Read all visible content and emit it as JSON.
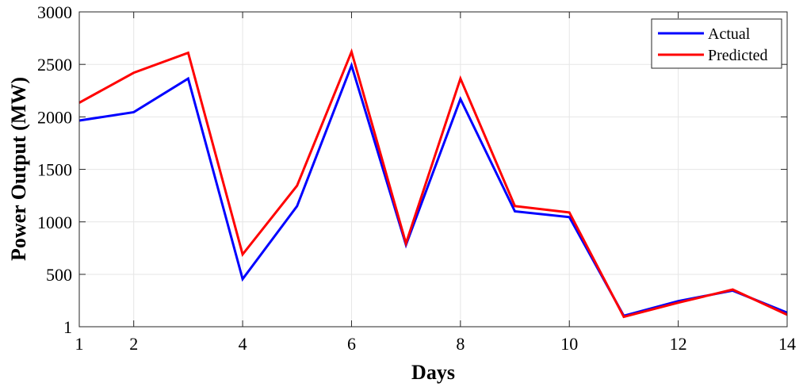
{
  "chart_data": {
    "type": "line",
    "xlabel": "Days",
    "ylabel": "Power Output (MW)",
    "xlim": [
      1,
      14
    ],
    "ylim": [
      1,
      3000
    ],
    "x_ticks": [
      1,
      2,
      4,
      6,
      8,
      10,
      12,
      14
    ],
    "y_ticks": [
      1,
      500,
      1000,
      1500,
      2000,
      2500,
      3000
    ],
    "x_tick_labels": [
      "1",
      "2",
      "4",
      "6",
      "8",
      "10",
      "12",
      "14"
    ],
    "y_tick_labels": [
      "1",
      "500",
      "1000",
      "1500",
      "2000",
      "2500",
      "3000"
    ],
    "grid": true,
    "legend_position": "top-right",
    "x": [
      1,
      2,
      3,
      4,
      5,
      6,
      7,
      8,
      9,
      10,
      11,
      12,
      13,
      14
    ],
    "series": [
      {
        "name": "Actual",
        "color": "#0000ff",
        "values": [
          1965,
          2045,
          2365,
          455,
          1150,
          2490,
          780,
          2170,
          1100,
          1045,
          105,
          245,
          345,
          135
        ]
      },
      {
        "name": "Predicted",
        "color": "#ff0000",
        "values": [
          2135,
          2420,
          2610,
          690,
          1345,
          2620,
          795,
          2365,
          1150,
          1090,
          95,
          230,
          355,
          115
        ]
      }
    ]
  }
}
